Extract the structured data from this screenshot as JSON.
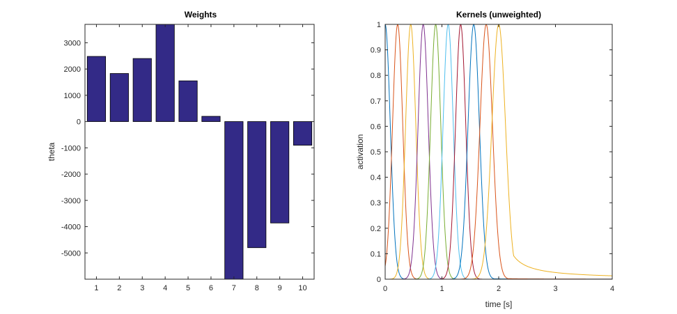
{
  "chart_data": [
    {
      "type": "bar",
      "title": "Weights",
      "xlabel": "",
      "ylabel": "theta",
      "categories": [
        "1",
        "2",
        "3",
        "4",
        "5",
        "6",
        "7",
        "8",
        "9",
        "10"
      ],
      "values": [
        2480,
        1830,
        2400,
        3720,
        1550,
        200,
        -6000,
        -4800,
        -3860,
        -900
      ],
      "xlim": [
        0.5,
        10.5
      ],
      "ylim": [
        -6000,
        3700
      ],
      "yticks": [
        3000,
        2000,
        1000,
        0,
        -1000,
        -2000,
        -3000,
        -4000,
        -5000
      ],
      "ytick_labels": [
        "3000",
        "2000",
        "1000",
        "0",
        "-1000",
        "-2000",
        "-3000",
        "-4000",
        "-5000"
      ],
      "bar_color": "#332a87",
      "bar_edge_color": "#000000",
      "grid": false
    },
    {
      "type": "line",
      "title": "Kernels (unweighted)",
      "xlabel": "time [s]",
      "ylabel": "activation",
      "xlim": [
        0,
        4
      ],
      "ylim": [
        0,
        1
      ],
      "xticks": [
        0,
        1,
        2,
        3,
        4
      ],
      "xtick_labels": [
        "0",
        "1",
        "2",
        "3",
        "4"
      ],
      "yticks": [
        0,
        0.1,
        0.2,
        0.3,
        0.4,
        0.5,
        0.6,
        0.7,
        0.8,
        0.9,
        1
      ],
      "ytick_labels": [
        "0",
        "0.1",
        "0.2",
        "0.3",
        "0.4",
        "0.5",
        "0.6",
        "0.7",
        "0.8",
        "0.9",
        "1"
      ],
      "grid": false,
      "series": [
        {
          "color": "#0072bd",
          "peak": 0.0,
          "width": 0.09,
          "tail": 0
        },
        {
          "color": "#d95319",
          "peak": 0.22,
          "width": 0.09,
          "tail": 0
        },
        {
          "color": "#edb120",
          "peak": 0.45,
          "width": 0.09,
          "tail": 0
        },
        {
          "color": "#7e2f8e",
          "peak": 0.67,
          "width": 0.09,
          "tail": 0
        },
        {
          "color": "#77ac30",
          "peak": 0.89,
          "width": 0.09,
          "tail": 0
        },
        {
          "color": "#4dbeee",
          "peak": 1.11,
          "width": 0.09,
          "tail": 0
        },
        {
          "color": "#a2142f",
          "peak": 1.33,
          "width": 0.09,
          "tail": 0
        },
        {
          "color": "#0072bd",
          "peak": 1.56,
          "width": 0.1,
          "tail": 0.02
        },
        {
          "color": "#d95319",
          "peak": 1.78,
          "width": 0.11,
          "tail": 0.03
        },
        {
          "color": "#edb120",
          "peak": 2.0,
          "width": 0.12,
          "tail": 0.9
        }
      ]
    }
  ]
}
